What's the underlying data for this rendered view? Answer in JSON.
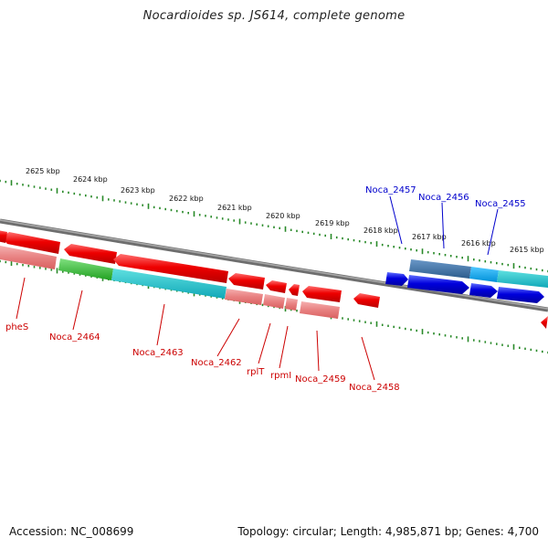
{
  "header": {
    "title": "Nocardioides sp. JS614, complete genome"
  },
  "footer": {
    "accession": "Accession: NC_008699",
    "topology": "Topology: circular; Length: 4,985,871 bp; Genes: 4,700"
  },
  "scale": {
    "labels": [
      "2625 kbp",
      "2624 kbp",
      "2623 kbp",
      "2622 kbp",
      "2621 kbp",
      "2620 kbp",
      "2619 kbp",
      "2618 kbp",
      "2617 kbp",
      "2616 kbp",
      "2615 kbp"
    ]
  },
  "genes": {
    "red_labels": [
      "pheS",
      "Noca_2464",
      "Noca_2463",
      "Noca_2462",
      "rplT",
      "rpmI",
      "Noca_2459",
      "Noca_2458"
    ],
    "blue_labels": [
      "Noca_2457",
      "Noca_2456",
      "Noca_2455"
    ]
  },
  "colors": {
    "forward_gene": "#ee0000",
    "reverse_gene": "#0000dd",
    "tick": "#2a8a2a",
    "backbone": "#7a7a7a"
  }
}
